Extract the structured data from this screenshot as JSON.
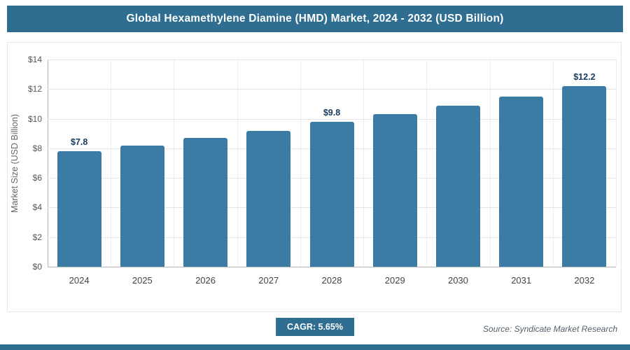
{
  "header": {
    "title": "Global Hexamethylene Diamine (HMD) Market, 2024 - 2032 (USD Billion)"
  },
  "chart_data": {
    "type": "bar",
    "title": "Global Hexamethylene Diamine (HMD) Market, 2024 - 2032 (USD Billion)",
    "categories": [
      "2024",
      "2025",
      "2026",
      "2027",
      "2028",
      "2029",
      "2030",
      "2031",
      "2032"
    ],
    "values": [
      7.8,
      8.2,
      8.7,
      9.2,
      9.8,
      10.3,
      10.9,
      11.5,
      12.2
    ],
    "data_labels": [
      "$7.8",
      "",
      "",
      "",
      "$9.8",
      "",
      "",
      "",
      "$12.2"
    ],
    "xlabel": "",
    "ylabel": "Market Size (USD Billion)",
    "ylim": [
      0,
      14
    ],
    "ytick_step": 2,
    "ytick_labels": [
      "$0",
      "$2",
      "$4",
      "$6",
      "$8",
      "$10",
      "$12",
      "$14"
    ],
    "grid": true,
    "legend": "none",
    "cagr": "5.65%"
  },
  "footer": {
    "cagr_label": "CAGR: 5.65%",
    "source": "Source: Syndicate Market Research"
  },
  "colors": {
    "accent": "#2f6e91",
    "bar": "#3c7ba4"
  }
}
